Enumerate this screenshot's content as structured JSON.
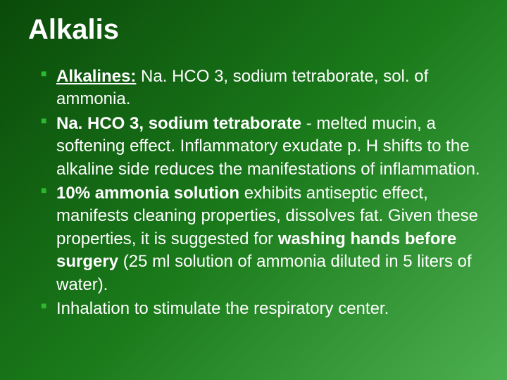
{
  "title": "Alkalis",
  "title_fontsize": 40,
  "title_color": "#ffffff",
  "body_fontsize": 24,
  "body_color": "#ffffff",
  "bullet_color": "#2db82d",
  "background_gradient": [
    "#0a4a0a",
    "#1a7a1a",
    "#4CAF50"
  ],
  "bullets": [
    {
      "segments": [
        {
          "text": "Alkalines:",
          "bold": true,
          "underline": true
        },
        {
          "text": " Na. HCO 3, sodium tetraborate, sol. of ammonia."
        }
      ]
    },
    {
      "segments": [
        {
          "text": "Na. HCO 3, sodium tetraborate",
          "bold": true
        },
        {
          "text": " - melted mucin, a softening effect. Inflammatory exudate p. H shifts to the alkaline side reduces the manifestations of inflammation."
        }
      ]
    },
    {
      "segments": [
        {
          "text": "10% ammonia solution",
          "bold": true
        },
        {
          "text": " exhibits antiseptic effect, manifests cleaning properties, dissolves fat. Given these properties, it is suggested for "
        },
        {
          "text": "washing hands before surgery",
          "bold": true
        },
        {
          "text": " (25 ml solution of ammonia diluted in 5 liters of water)."
        }
      ]
    },
    {
      "segments": [
        {
          "text": "Inhalation to stimulate the respiratory center."
        }
      ]
    }
  ]
}
